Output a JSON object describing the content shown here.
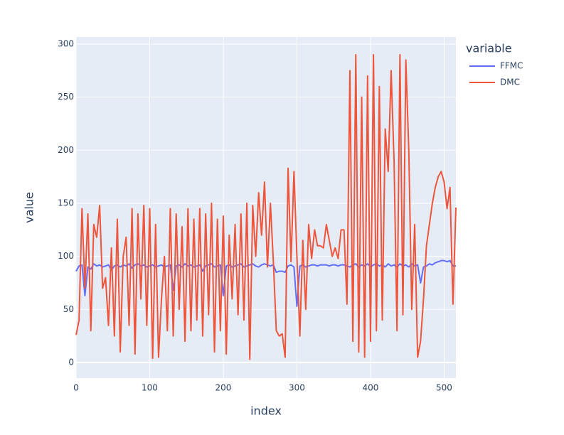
{
  "chart_data": {
    "type": "line",
    "x_label": "index",
    "y_label": "value",
    "legend_title": "variable",
    "xlim": [
      0,
      516
    ],
    "ylim": [
      -14.7,
      306.7
    ],
    "xticks": [
      0,
      100,
      200,
      300,
      400,
      500
    ],
    "yticks": [
      0,
      50,
      100,
      150,
      200,
      250,
      300
    ],
    "grid": true,
    "x": [
      0,
      4,
      8,
      12,
      16,
      20,
      24,
      28,
      32,
      36,
      40,
      44,
      48,
      52,
      56,
      60,
      64,
      68,
      72,
      76,
      80,
      84,
      88,
      92,
      96,
      100,
      104,
      108,
      112,
      116,
      120,
      124,
      128,
      132,
      136,
      140,
      144,
      148,
      152,
      156,
      160,
      164,
      168,
      172,
      176,
      180,
      184,
      188,
      192,
      196,
      200,
      204,
      208,
      212,
      216,
      220,
      224,
      228,
      232,
      236,
      240,
      244,
      248,
      252,
      256,
      260,
      264,
      268,
      272,
      276,
      280,
      284,
      288,
      292,
      296,
      300,
      304,
      308,
      312,
      316,
      320,
      324,
      328,
      332,
      336,
      340,
      344,
      348,
      352,
      356,
      360,
      364,
      368,
      372,
      376,
      380,
      384,
      388,
      392,
      396,
      400,
      404,
      408,
      412,
      416,
      420,
      424,
      428,
      432,
      436,
      440,
      444,
      448,
      452,
      456,
      460,
      464,
      468,
      472,
      476,
      480,
      484,
      488,
      492,
      496,
      500,
      504,
      508,
      512,
      516
    ],
    "series": [
      {
        "name": "FFMC",
        "color": "#636efa",
        "values": [
          86,
          91,
          92,
          63,
          90,
          88,
          93,
          91,
          92,
          90,
          91,
          92,
          87,
          91,
          92,
          90,
          92,
          91,
          93,
          89,
          92,
          93,
          91,
          92,
          90,
          91,
          92,
          90,
          91,
          92,
          90,
          91,
          92,
          68,
          91,
          92,
          90,
          93,
          91,
          92,
          90,
          91,
          92,
          86,
          91,
          92,
          93,
          90,
          91,
          92,
          63,
          91,
          92,
          90,
          91,
          92,
          93,
          90,
          91,
          92,
          93,
          91,
          90,
          92,
          93,
          92,
          91,
          92,
          85,
          86,
          86,
          85,
          91,
          92,
          90,
          53,
          91,
          92,
          90,
          91,
          92,
          92,
          91,
          92,
          92,
          92,
          91,
          92,
          92,
          91,
          92,
          92,
          91,
          90,
          92,
          93,
          90,
          92,
          91,
          93,
          90,
          92,
          93,
          91,
          92,
          90,
          93,
          91,
          92,
          90,
          93,
          91,
          92,
          90,
          93,
          91,
          92,
          75,
          90,
          91,
          93,
          92,
          94,
          95,
          96,
          96,
          95,
          96,
          91,
          91
        ]
      },
      {
        "name": "DMC",
        "color": "#EF553B",
        "values": [
          26,
          40,
          145,
          70,
          140,
          30,
          130,
          118,
          148,
          70,
          80,
          35,
          108,
          25,
          135,
          10,
          100,
          118,
          35,
          145,
          8,
          140,
          60,
          148,
          35,
          145,
          4,
          130,
          5,
          60,
          100,
          30,
          145,
          25,
          140,
          50,
          128,
          20,
          145,
          30,
          135,
          40,
          145,
          25,
          140,
          45,
          150,
          10,
          135,
          30,
          138,
          8,
          120,
          60,
          130,
          45,
          140,
          40,
          150,
          3,
          148,
          100,
          160,
          120,
          170,
          90,
          150,
          95,
          30,
          25,
          27,
          5,
          183,
          95,
          180,
          100,
          25,
          115,
          50,
          130,
          98,
          125,
          110,
          110,
          108,
          130,
          115,
          100,
          108,
          98,
          125,
          125,
          55,
          275,
          20,
          290,
          10,
          250,
          5,
          270,
          20,
          290,
          30,
          260,
          40,
          220,
          180,
          275,
          190,
          30,
          290,
          45,
          285,
          200,
          50,
          130,
          5,
          20,
          60,
          110,
          130,
          150,
          165,
          175,
          180,
          170,
          145,
          165,
          55,
          146
        ]
      }
    ]
  }
}
